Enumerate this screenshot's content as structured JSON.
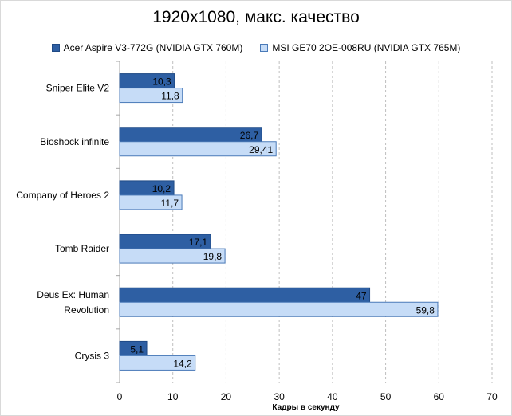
{
  "chart_data": {
    "type": "bar",
    "orientation": "horizontal",
    "title": "1920x1080, макс. качество",
    "xlabel": "Кадры  в секунду",
    "ylabel": "",
    "xlim": [
      0,
      70
    ],
    "xticks": [
      0,
      10,
      20,
      30,
      40,
      50,
      60,
      70
    ],
    "grid": true,
    "legend_position": "top",
    "categories": [
      [
        "Sniper Elite V2"
      ],
      [
        "Bioshock infinite"
      ],
      [
        "Company of Heroes 2"
      ],
      [
        "Tomb Raider"
      ],
      [
        "Deus Ex: Human",
        "Revolution"
      ],
      [
        "Crysis 3"
      ]
    ],
    "series": [
      {
        "name": "Acer Aspire V3-772G (NVIDIA GTX 760M)",
        "color": "#2e5fa3",
        "values": [
          10.3,
          26.7,
          10.2,
          17.1,
          47,
          5.1
        ],
        "labels": [
          "10,3",
          "26,7",
          "10,2",
          "17,1",
          "47",
          "5,1"
        ]
      },
      {
        "name": "MSI GE70 2OE-008RU (NVIDIA GTX 765M)",
        "color": "#c6dcf7",
        "values": [
          11.8,
          29.41,
          11.7,
          19.8,
          59.8,
          14.2
        ],
        "labels": [
          "11,8",
          "29,41",
          "11,7",
          "19,8",
          "59,8",
          "14,2"
        ]
      }
    ]
  }
}
